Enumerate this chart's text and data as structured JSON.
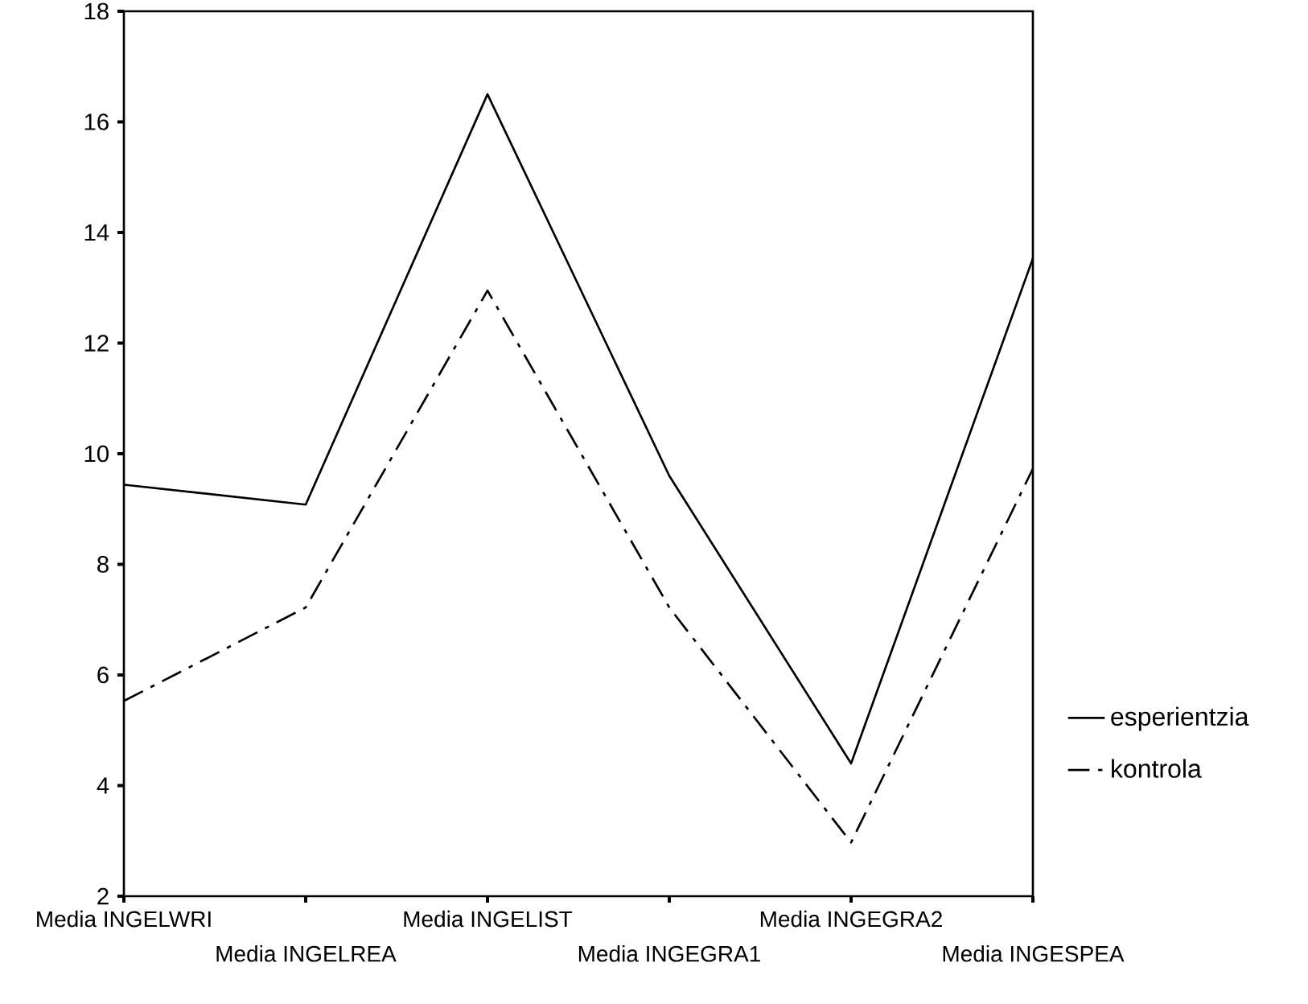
{
  "chart_data": {
    "type": "line",
    "categories": [
      "Media INGELWRI",
      "Media INGELREA",
      "Media INGELIST",
      "Media INGEGRA1",
      "Media INGEGRA2",
      "Media INGESPEA"
    ],
    "series": [
      {
        "name": "esperientzia",
        "color": "#000000",
        "line_style": "solid",
        "values": [
          9.44,
          9.08,
          16.5,
          9.6,
          4.4,
          13.53
        ]
      },
      {
        "name": "kontrola",
        "color": "#000000",
        "line_style": "dashed",
        "values": [
          5.53,
          7.22,
          12.95,
          7.22,
          2.97,
          9.73
        ]
      }
    ],
    "ylim": [
      2,
      18
    ],
    "yticks": [
      2,
      4,
      6,
      8,
      10,
      12,
      14,
      16,
      18
    ],
    "grid": false,
    "legend": "right",
    "marker": "none"
  }
}
